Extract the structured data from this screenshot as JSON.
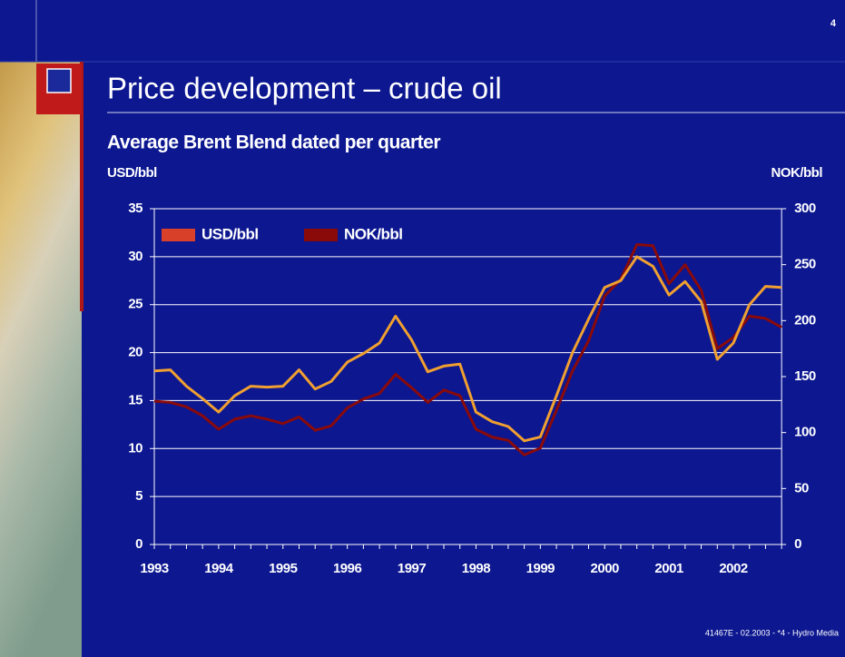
{
  "slide_number": "4",
  "title": "Price development – crude oil",
  "footer": "41467E - 02.2003 - *4 - Hydro Media",
  "chart_data": {
    "type": "line",
    "title": "Average Brent Blend dated per quarter",
    "y_label": "USD/bbl",
    "y2_label": "NOK/bbl",
    "categories": [
      "1993",
      null,
      null,
      null,
      "1994",
      null,
      null,
      null,
      "1995",
      null,
      null,
      null,
      "1996",
      null,
      null,
      null,
      "1997",
      null,
      null,
      null,
      "1998",
      null,
      null,
      null,
      "1999",
      null,
      null,
      null,
      "2000",
      null,
      null,
      null,
      "2001",
      null,
      null,
      null,
      "2002",
      null,
      null,
      null
    ],
    "series": [
      {
        "name": "USD/bbl",
        "color": "#f0a030",
        "swatch_color": "#d8402a",
        "values": [
          18.1,
          18.2,
          16.5,
          15.2,
          13.8,
          15.5,
          16.5,
          16.4,
          16.5,
          18.2,
          16.2,
          17.0,
          19.0,
          19.9,
          21.0,
          23.8,
          21.3,
          18.0,
          18.6,
          18.8,
          13.8,
          12.8,
          12.3,
          10.8,
          11.2,
          15.5,
          20.0,
          23.5,
          26.8,
          27.5,
          30.0,
          29.0,
          26.0,
          27.4,
          25.3,
          19.3,
          21.0,
          25.0,
          26.9,
          26.8
        ]
      },
      {
        "name": "NOK/bbl",
        "color": "#8a0a0a",
        "swatch_color": "#8a0a0a",
        "axis": "y2",
        "values": [
          128,
          127,
          123,
          115,
          103,
          112,
          115,
          112,
          108,
          114,
          102,
          106,
          122,
          130,
          135,
          152,
          140,
          127,
          138,
          133,
          103,
          96,
          93,
          80,
          86,
          120,
          155,
          182,
          222,
          237,
          268,
          267,
          233,
          250,
          227,
          175,
          185,
          204,
          202,
          194
        ]
      }
    ],
    "ylim": [
      0,
      35
    ],
    "yticks": [
      0,
      5,
      10,
      15,
      20,
      25,
      30,
      35
    ],
    "y2lim": [
      0,
      300
    ],
    "y2ticks": [
      0,
      50,
      100,
      150,
      200,
      250,
      300
    ],
    "grid": true,
    "legend": "upper left"
  }
}
